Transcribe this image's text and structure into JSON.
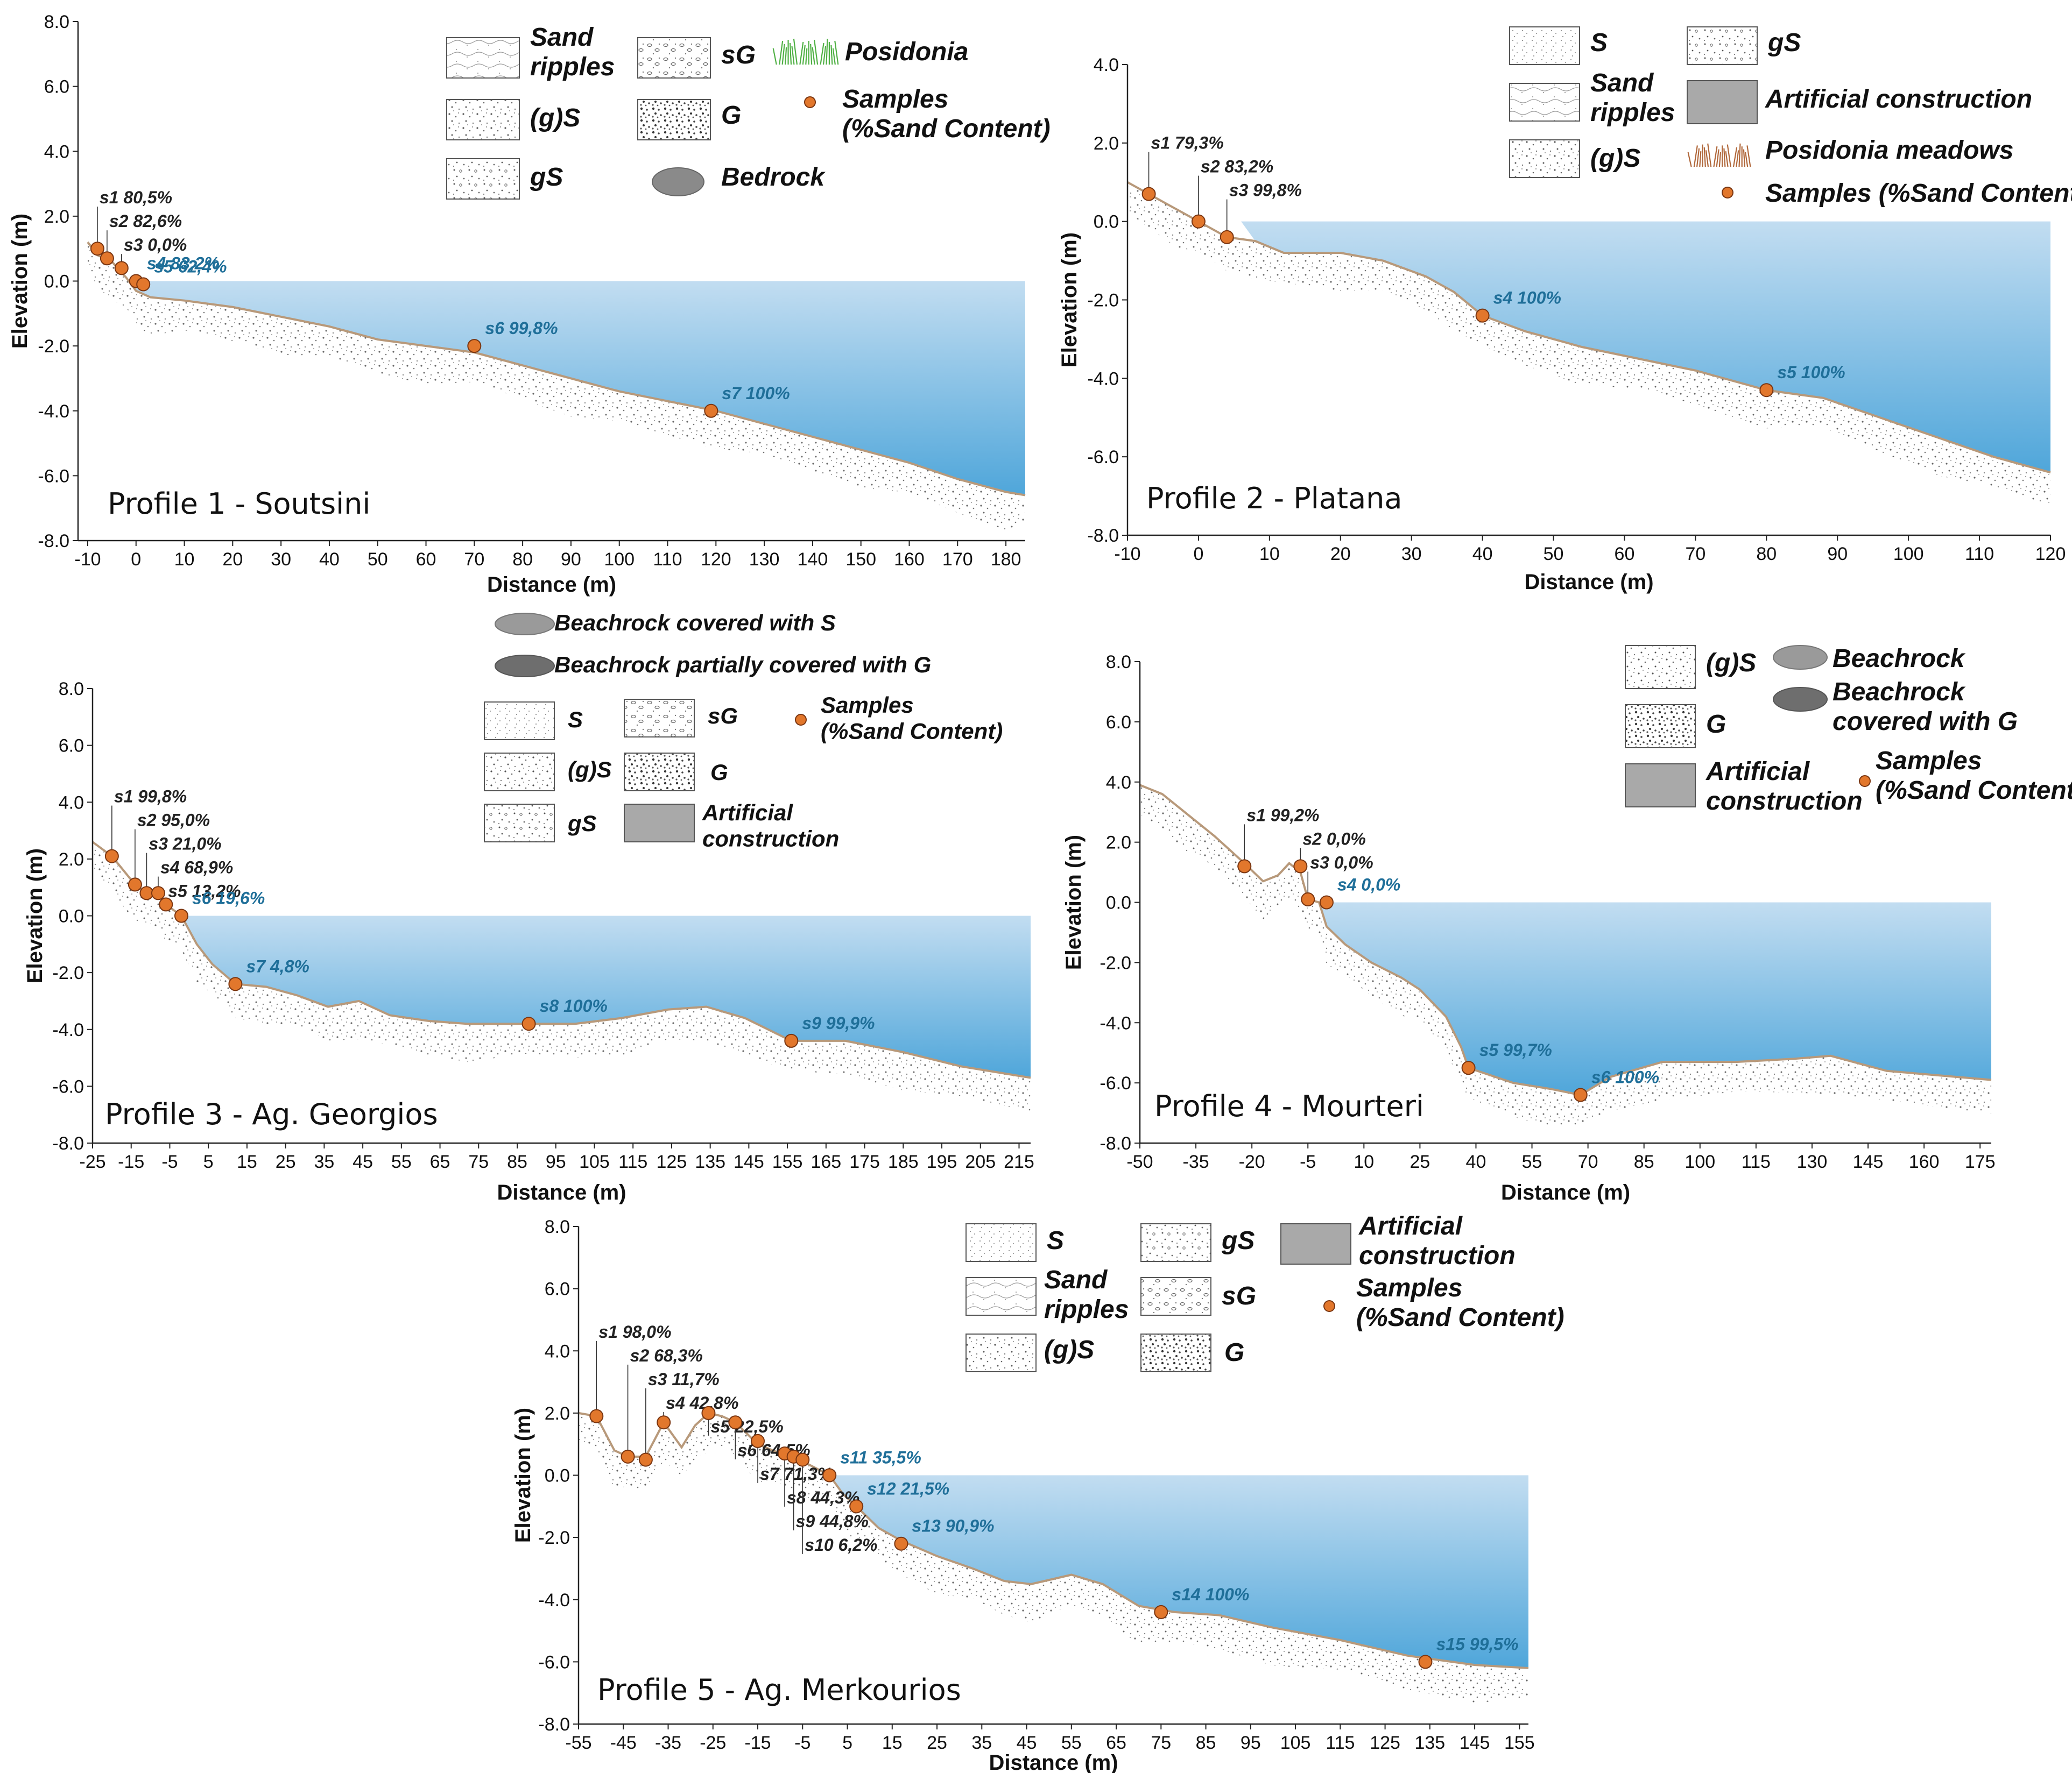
{
  "colors": {
    "water_top": "#c2ddf1",
    "water_bottom": "#4fa6da",
    "seabed_line": "#b8997a",
    "sample_fill": "#e2772c",
    "sample_stroke": "#7a3510",
    "label_above": "#222222",
    "label_below": "#1f6f99",
    "artificial": "#a9a9a9",
    "posidonia": "#4fb044",
    "posidonia_meadow": "#b0673a",
    "bedrock": "#8a8a8a"
  },
  "chart_data": [
    {
      "type": "line",
      "id": "p1",
      "title": "Profile 1 - Soutsini",
      "xlabel": "Distance (m)",
      "ylabel": "Elevation  (m)",
      "xlim": [
        -12,
        184
      ],
      "ylim": [
        -8,
        8
      ],
      "xticks": [
        -10,
        0,
        10,
        20,
        30,
        40,
        50,
        60,
        70,
        80,
        90,
        100,
        110,
        120,
        130,
        140,
        150,
        160,
        170,
        180
      ],
      "yticks": [
        8,
        6,
        4,
        2,
        0,
        -2,
        -4,
        -6,
        -8
      ],
      "ytick_labels": [
        "8.0",
        "6.0",
        "4.0",
        "2.0",
        "0.0",
        "-2.0",
        "-4.0",
        "-6.0",
        "-8.0"
      ],
      "sea_level_x": 0,
      "seabed": [
        [
          -10,
          1.2
        ],
        [
          -8,
          0.8
        ],
        [
          -5,
          0.6
        ],
        [
          -2,
          0.1
        ],
        [
          0,
          -0.3
        ],
        [
          3,
          -0.5
        ],
        [
          10,
          -0.6
        ],
        [
          20,
          -0.8
        ],
        [
          30,
          -1.1
        ],
        [
          40,
          -1.4
        ],
        [
          50,
          -1.8
        ],
        [
          60,
          -2.0
        ],
        [
          70,
          -2.2
        ],
        [
          80,
          -2.6
        ],
        [
          90,
          -3.0
        ],
        [
          100,
          -3.4
        ],
        [
          110,
          -3.7
        ],
        [
          120,
          -4.0
        ],
        [
          130,
          -4.4
        ],
        [
          140,
          -4.8
        ],
        [
          150,
          -5.2
        ],
        [
          160,
          -5.6
        ],
        [
          170,
          -6.1
        ],
        [
          180,
          -6.5
        ],
        [
          184,
          -6.6
        ]
      ],
      "samples": [
        {
          "name": "s1",
          "value": "80,5%",
          "x": -8,
          "y": 1.0
        },
        {
          "name": "s2",
          "value": "82,6%",
          "x": -6,
          "y": 0.7
        },
        {
          "name": "s3",
          "value": "0,0%",
          "x": -3,
          "y": 0.4
        },
        {
          "name": "s4",
          "value": "83,2%",
          "x": 0,
          "y": 0.0
        },
        {
          "name": "s5",
          "value": "62,4%",
          "x": 1.5,
          "y": -0.1
        },
        {
          "name": "s6",
          "value": "99,8%",
          "x": 70,
          "y": -2.0
        },
        {
          "name": "s7",
          "value": "100%",
          "x": 119,
          "y": -4.0
        }
      ]
    },
    {
      "type": "line",
      "id": "p2",
      "title": "Profile 2 - Platana",
      "xlabel": "Distance (m)",
      "ylabel": "Elevation  (m)",
      "xlim": [
        -10,
        120
      ],
      "ylim": [
        -8,
        4
      ],
      "xticks": [
        -10,
        0,
        10,
        20,
        30,
        40,
        50,
        60,
        70,
        80,
        90,
        100,
        110,
        120
      ],
      "yticks": [
        4,
        2,
        0,
        -2,
        -4,
        -6,
        -8
      ],
      "ytick_labels": [
        "4.0",
        "2.0",
        "0.0",
        "-2.0",
        "-4.0",
        "-6.0",
        "-8.0"
      ],
      "sea_level_x": 6,
      "seabed": [
        [
          -10,
          1.0
        ],
        [
          -7,
          0.7
        ],
        [
          -3,
          0.3
        ],
        [
          0,
          0.0
        ],
        [
          4,
          -0.4
        ],
        [
          8,
          -0.5
        ],
        [
          12,
          -0.8
        ],
        [
          16,
          -0.8
        ],
        [
          20,
          -0.8
        ],
        [
          26,
          -1.0
        ],
        [
          32,
          -1.4
        ],
        [
          36,
          -1.8
        ],
        [
          40,
          -2.4
        ],
        [
          46,
          -2.8
        ],
        [
          54,
          -3.2
        ],
        [
          62,
          -3.5
        ],
        [
          70,
          -3.8
        ],
        [
          80,
          -4.3
        ],
        [
          88,
          -4.5
        ],
        [
          96,
          -5.0
        ],
        [
          104,
          -5.5
        ],
        [
          112,
          -6.0
        ],
        [
          120,
          -6.4
        ]
      ],
      "samples": [
        {
          "name": "s1",
          "value": "79,3%",
          "x": -7,
          "y": 0.7
        },
        {
          "name": "s2",
          "value": "83,2%",
          "x": 0,
          "y": 0.0
        },
        {
          "name": "s3",
          "value": "99,8%",
          "x": 4,
          "y": -0.4
        },
        {
          "name": "s4",
          "value": "100%",
          "x": 40,
          "y": -2.4
        },
        {
          "name": "s5",
          "value": "100%",
          "x": 80,
          "y": -4.3
        }
      ]
    },
    {
      "type": "line",
      "id": "p3",
      "title": "Profile 3 - Ag. Georgios",
      "xlabel": "Distance (m)",
      "ylabel": "Elevation  (m)",
      "xlim": [
        -25,
        218
      ],
      "ylim": [
        -8,
        8
      ],
      "xticks": [
        -25,
        -15,
        -5,
        5,
        15,
        25,
        35,
        45,
        55,
        65,
        75,
        85,
        95,
        105,
        115,
        125,
        135,
        145,
        155,
        165,
        175,
        185,
        195,
        205,
        215
      ],
      "yticks": [
        8,
        6,
        4,
        2,
        0,
        -2,
        -4,
        -6,
        -8
      ],
      "ytick_labels": [
        "8.0",
        "6.0",
        "4.0",
        "2.0",
        "0.0",
        "-2.0",
        "-4.0",
        "-6.0",
        "-8.0"
      ],
      "sea_level_x": -2,
      "seabed": [
        [
          -25,
          2.6
        ],
        [
          -20,
          2.1
        ],
        [
          -14,
          1.1
        ],
        [
          -11,
          0.8
        ],
        [
          -8,
          0.8
        ],
        [
          -6,
          0.4
        ],
        [
          -4,
          0.2
        ],
        [
          -2,
          0.0
        ],
        [
          2,
          -1.0
        ],
        [
          6,
          -1.7
        ],
        [
          12,
          -2.4
        ],
        [
          20,
          -2.5
        ],
        [
          28,
          -2.8
        ],
        [
          36,
          -3.2
        ],
        [
          44,
          -3.0
        ],
        [
          52,
          -3.5
        ],
        [
          62,
          -3.7
        ],
        [
          72,
          -3.8
        ],
        [
          88,
          -3.8
        ],
        [
          100,
          -3.8
        ],
        [
          112,
          -3.6
        ],
        [
          124,
          -3.3
        ],
        [
          134,
          -3.2
        ],
        [
          144,
          -3.6
        ],
        [
          156,
          -4.4
        ],
        [
          170,
          -4.4
        ],
        [
          185,
          -4.8
        ],
        [
          200,
          -5.3
        ],
        [
          218,
          -5.7
        ]
      ],
      "samples": [
        {
          "name": "s1",
          "value": "99,8%",
          "x": -20,
          "y": 2.1
        },
        {
          "name": "s2",
          "value": "95,0%",
          "x": -14,
          "y": 1.1
        },
        {
          "name": "s3",
          "value": "21,0%",
          "x": -11,
          "y": 0.8
        },
        {
          "name": "s4",
          "value": "68,9%",
          "x": -8,
          "y": 0.8
        },
        {
          "name": "s5",
          "value": "13,2%",
          "x": -6,
          "y": 0.4
        },
        {
          "name": "s6",
          "value": "19,6%",
          "x": -2,
          "y": 0.0
        },
        {
          "name": "s7",
          "value": "4,8%",
          "x": 12,
          "y": -2.4
        },
        {
          "name": "s8",
          "value": "100%",
          "x": 88,
          "y": -3.8
        },
        {
          "name": "s9",
          "value": "99,9%",
          "x": 156,
          "y": -4.4
        }
      ]
    },
    {
      "type": "line",
      "id": "p4",
      "title": "Profile 4 - Mourteri",
      "xlabel": "Distance (m)",
      "ylabel": "Elevation  (m)",
      "xlim": [
        -50,
        178
      ],
      "ylim": [
        -8,
        8
      ],
      "xticks": [
        -50,
        -35,
        -20,
        -5,
        10,
        25,
        40,
        55,
        70,
        85,
        100,
        115,
        130,
        145,
        160,
        175
      ],
      "yticks": [
        8,
        6,
        4,
        2,
        0,
        -2,
        -4,
        -6,
        -8
      ],
      "ytick_labels": [
        "8.0",
        "6.0",
        "4.0",
        "2.0",
        "0.0",
        "-2.0",
        "-4.0",
        "-6.0",
        "-8.0"
      ],
      "sea_level_x": -2,
      "seabed": [
        [
          -50,
          3.9
        ],
        [
          -44,
          3.6
        ],
        [
          -38,
          3.0
        ],
        [
          -30,
          2.2
        ],
        [
          -22,
          1.3
        ],
        [
          -17,
          0.7
        ],
        [
          -13,
          0.9
        ],
        [
          -10,
          1.3
        ],
        [
          -7,
          1.0
        ],
        [
          -5,
          0.1
        ],
        [
          -2,
          0.0
        ],
        [
          0,
          -0.8
        ],
        [
          5,
          -1.4
        ],
        [
          12,
          -2.0
        ],
        [
          20,
          -2.5
        ],
        [
          25,
          -2.9
        ],
        [
          32,
          -3.8
        ],
        [
          36,
          -4.8
        ],
        [
          38,
          -5.5
        ],
        [
          50,
          -6.0
        ],
        [
          60,
          -6.2
        ],
        [
          68,
          -6.4
        ],
        [
          76,
          -5.8
        ],
        [
          90,
          -5.3
        ],
        [
          110,
          -5.3
        ],
        [
          125,
          -5.2
        ],
        [
          135,
          -5.1
        ],
        [
          150,
          -5.6
        ],
        [
          178,
          -5.9
        ]
      ],
      "samples": [
        {
          "name": "s1",
          "value": "99,2%",
          "x": -22,
          "y": 1.2
        },
        {
          "name": "s2",
          "value": "0,0%",
          "x": -7,
          "y": 1.2
        },
        {
          "name": "s3",
          "value": "0,0%",
          "x": -5,
          "y": 0.1
        },
        {
          "name": "s4",
          "value": "0,0%",
          "x": 0,
          "y": 0.0
        },
        {
          "name": "s5",
          "value": "99,7%",
          "x": 38,
          "y": -5.5
        },
        {
          "name": "s6",
          "value": "100%",
          "x": 68,
          "y": -6.4
        }
      ]
    },
    {
      "type": "line",
      "id": "p5",
      "title": "Profile 5 - Ag. Merkourios",
      "xlabel": "Distance (m)",
      "ylabel": "Elevation  (m)",
      "xlim": [
        -55,
        157
      ],
      "ylim": [
        -8,
        8
      ],
      "xticks": [
        -55,
        -45,
        -35,
        -25,
        -15,
        -5,
        5,
        15,
        25,
        35,
        45,
        55,
        65,
        75,
        85,
        95,
        105,
        115,
        125,
        135,
        145,
        155
      ],
      "yticks": [
        8,
        6,
        4,
        2,
        0,
        -2,
        -4,
        -6,
        -8
      ],
      "ytick_labels": [
        "8.0",
        "6.0",
        "4.0",
        "2.0",
        "0.0",
        "-2.0",
        "-4.0",
        "-6.0",
        "-8.0"
      ],
      "sea_level_x": 1,
      "seabed": [
        [
          -55,
          2.0
        ],
        [
          -51,
          1.9
        ],
        [
          -47,
          0.8
        ],
        [
          -44,
          0.6
        ],
        [
          -40,
          0.6
        ],
        [
          -36,
          1.7
        ],
        [
          -32,
          0.9
        ],
        [
          -29,
          1.6
        ],
        [
          -26,
          2.0
        ],
        [
          -23,
          1.9
        ],
        [
          -20,
          1.7
        ],
        [
          -15,
          1.0
        ],
        [
          -10,
          0.7
        ],
        [
          -7,
          0.6
        ],
        [
          -3,
          0.3
        ],
        [
          1,
          0.0
        ],
        [
          4,
          -0.6
        ],
        [
          7,
          -1.0
        ],
        [
          12,
          -1.7
        ],
        [
          17,
          -2.1
        ],
        [
          25,
          -2.6
        ],
        [
          33,
          -3.0
        ],
        [
          40,
          -3.4
        ],
        [
          46,
          -3.5
        ],
        [
          55,
          -3.2
        ],
        [
          62,
          -3.5
        ],
        [
          70,
          -4.2
        ],
        [
          78,
          -4.4
        ],
        [
          88,
          -4.5
        ],
        [
          100,
          -4.9
        ],
        [
          115,
          -5.3
        ],
        [
          130,
          -5.8
        ],
        [
          145,
          -6.1
        ],
        [
          157,
          -6.2
        ]
      ],
      "samples": [
        {
          "name": "s1",
          "value": "98,0%",
          "x": -51,
          "y": 1.9
        },
        {
          "name": "s2",
          "value": "68,3%",
          "x": -44,
          "y": 0.6
        },
        {
          "name": "s3",
          "value": "11,7%",
          "x": -40,
          "y": 0.5
        },
        {
          "name": "s4",
          "value": "42,8%",
          "x": -36,
          "y": 1.7
        },
        {
          "name": "s5",
          "value": "22,5%",
          "x": -26,
          "y": 2.0
        },
        {
          "name": "s6",
          "value": "64,5%",
          "x": -20,
          "y": 1.7
        },
        {
          "name": "s7",
          "value": "71,3%",
          "x": -15,
          "y": 1.1
        },
        {
          "name": "s8",
          "value": "44,3%",
          "x": -9,
          "y": 0.7
        },
        {
          "name": "s9",
          "value": "44,8%",
          "x": -7,
          "y": 0.6
        },
        {
          "name": "s10",
          "value": "6,2%",
          "x": -5,
          "y": 0.5
        },
        {
          "name": "s11",
          "value": "35,5%",
          "x": 1,
          "y": 0.0
        },
        {
          "name": "s12",
          "value": "21,5%",
          "x": 7,
          "y": -1.0
        },
        {
          "name": "s13",
          "value": "90,9%",
          "x": 17,
          "y": -2.2
        },
        {
          "name": "s14",
          "value": "100%",
          "x": 75,
          "y": -4.4
        },
        {
          "name": "s15",
          "value": "99,5%",
          "x": 134,
          "y": -6.0
        }
      ]
    }
  ],
  "legends": {
    "p1": [
      {
        "label": "Sand\nripples",
        "symbol": "sand-ripples-swatch"
      },
      {
        "label": "(g)S",
        "symbol": "gravelly-sand-swatch"
      },
      {
        "label": "gS",
        "symbol": "gs-swatch"
      },
      {
        "label": "sG",
        "symbol": "sg-swatch"
      },
      {
        "label": "G",
        "symbol": "gravel-swatch"
      },
      {
        "label": "Bedrock",
        "symbol": "bedrock-icon"
      },
      {
        "label": "Posidonia",
        "symbol": "posidonia-icon"
      },
      {
        "label": "Samples\n(%Sand Content)",
        "symbol": "sample-dot"
      }
    ],
    "p2": [
      {
        "label": "S",
        "symbol": "sand-swatch"
      },
      {
        "label": "Sand\nripples",
        "symbol": "sand-ripples-swatch"
      },
      {
        "label": "(g)S",
        "symbol": "gravelly-sand-swatch"
      },
      {
        "label": "gS",
        "symbol": "gs-swatch"
      },
      {
        "label": "Artificial construction",
        "symbol": "artificial-swatch"
      },
      {
        "label": "Posidonia meadows",
        "symbol": "posidonia-meadow-icon"
      },
      {
        "label": "Samples (%Sand Content)",
        "symbol": "sample-dot"
      }
    ],
    "p3": [
      {
        "label": "Beachrock covered with S",
        "symbol": "beachrock-s-icon"
      },
      {
        "label": "Beachrock partially covered with G",
        "symbol": "beachrock-g-icon"
      },
      {
        "label": "S",
        "symbol": "sand-swatch"
      },
      {
        "label": "(g)S",
        "symbol": "gravelly-sand-swatch"
      },
      {
        "label": "gS",
        "symbol": "gs-swatch"
      },
      {
        "label": "sG",
        "symbol": "sg-swatch"
      },
      {
        "label": "G",
        "symbol": "gravel-swatch"
      },
      {
        "label": "Artificial\nconstruction",
        "symbol": "artificial-swatch"
      },
      {
        "label": "Samples\n(%Sand Content)",
        "symbol": "sample-dot"
      }
    ],
    "p4": [
      {
        "label": "(g)S",
        "symbol": "gravelly-sand-swatch"
      },
      {
        "label": "G",
        "symbol": "gravel-swatch"
      },
      {
        "label": "Artificial\nconstruction",
        "symbol": "artificial-swatch"
      },
      {
        "label": "Beachrock",
        "symbol": "beachrock-icon"
      },
      {
        "label": "Beachrock\ncovered with G",
        "symbol": "beachrock-g-icon"
      },
      {
        "label": "Samples\n(%Sand Content)",
        "symbol": "sample-dot"
      }
    ],
    "p5": [
      {
        "label": "S",
        "symbol": "sand-swatch"
      },
      {
        "label": "Sand\nripples",
        "symbol": "sand-ripples-swatch"
      },
      {
        "label": "(g)S",
        "symbol": "gravelly-sand-swatch"
      },
      {
        "label": "gS",
        "symbol": "gs-swatch"
      },
      {
        "label": "sG",
        "symbol": "sg-swatch"
      },
      {
        "label": "G",
        "symbol": "gravel-swatch"
      },
      {
        "label": "Artificial\nconstruction",
        "symbol": "artificial-swatch"
      },
      {
        "label": "Samples\n(%Sand Content)",
        "symbol": "sample-dot"
      }
    ]
  }
}
